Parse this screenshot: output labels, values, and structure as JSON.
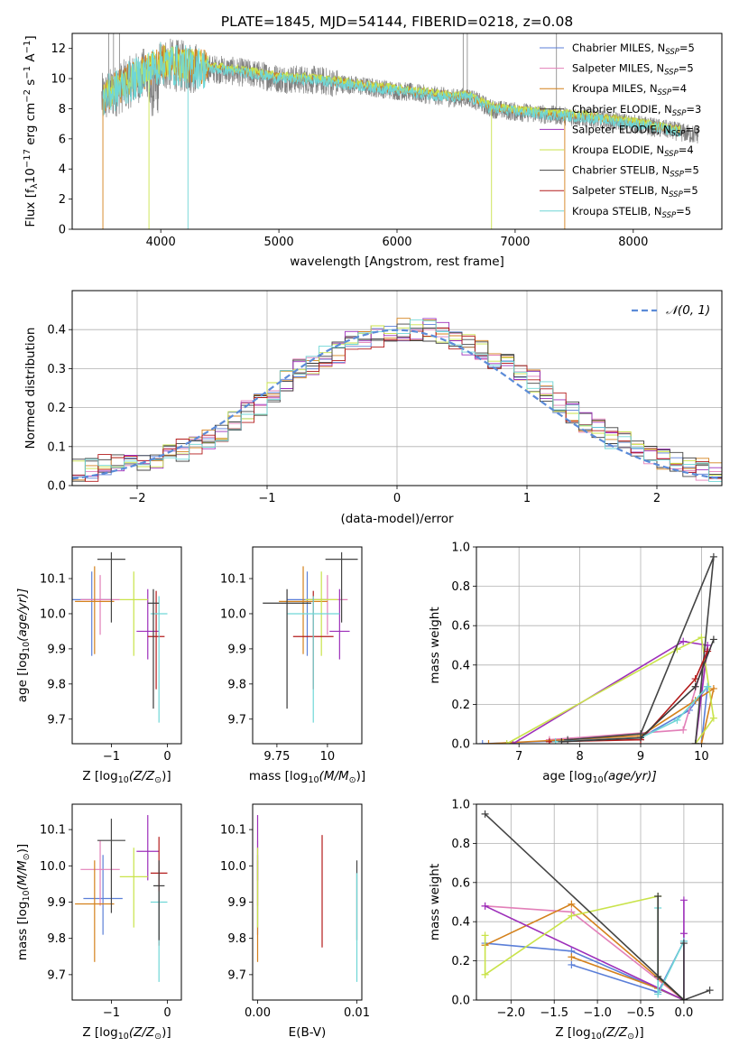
{
  "title": "PLATE=1845, MJD=54144, FIBERID=0218, z=0.08",
  "models": [
    {
      "label": "Chabrier MILES, N",
      "color": "#5b7fd8"
    },
    {
      "label": "Salpeter MILES, N",
      "color": "#e27fb8"
    },
    {
      "label": "Kroupa MILES, N",
      "color": "#d4811c"
    },
    {
      "label": "Chabrier ELODIE, N",
      "color": "#3a3a3a"
    },
    {
      "label": "Salpeter ELODIE, N",
      "color": "#9d2fba"
    },
    {
      "label": "Kroupa ELODIE, N",
      "color": "#c9e34a"
    },
    {
      "label": "Chabrier STELIB, N",
      "color": "#444444"
    },
    {
      "label": "Salpeter STELIB, N",
      "color": "#b31b1b"
    },
    {
      "label": "Kroupa STELIB, N",
      "color": "#6fd6d6"
    }
  ],
  "nssp_sub": "SSP",
  "nssp_values": [
    "=5",
    "=5",
    "=4",
    "=3",
    "=3",
    "=4",
    "=5",
    "=5",
    "=5"
  ],
  "colors": {
    "spectrum_gray": "#808080",
    "orange_models": "#e07a2d",
    "gaussian": "#5b8bd8",
    "green_dark": "#4a8a5a"
  },
  "chart_data": [
    {
      "id": "spectrum",
      "type": "line",
      "xlabel": "wavelength [Angstrom, rest frame]",
      "ylabel": "Flux [f_λ 10^-17 erg cm^-2 s^-1 A^-1]",
      "xlim": [
        3250,
        8750
      ],
      "ylim": [
        0,
        13
      ],
      "xticks": [
        4000,
        5000,
        6000,
        7000,
        8000
      ],
      "yticks": [
        0,
        2,
        4,
        6,
        8,
        10,
        12
      ],
      "continuum_x": [
        3500,
        3700,
        3900,
        4000,
        4200,
        4500,
        4800,
        5000,
        5300,
        5600,
        5900,
        6200,
        6500,
        6600,
        6800,
        7000,
        7300,
        7600,
        8000,
        8300,
        8500
      ],
      "continuum_y": [
        8.6,
        9.6,
        10.5,
        11.0,
        10.8,
        10.6,
        10.3,
        10.0,
        9.9,
        9.6,
        9.3,
        9.0,
        8.7,
        8.8,
        8.0,
        7.8,
        7.6,
        7.4,
        7.0,
        6.6,
        6.3
      ],
      "grid": false,
      "legend": "top-right"
    },
    {
      "id": "residuals",
      "type": "bar",
      "xlabel": "(data-model)/error",
      "ylabel": "Normed distribution",
      "xlim": [
        -2.5,
        2.5
      ],
      "ylim": [
        0,
        0.5
      ],
      "xticks": [
        -2,
        -1,
        0,
        1,
        2
      ],
      "yticks": [
        0.0,
        0.1,
        0.2,
        0.3,
        0.4
      ],
      "histogram_values": [
        0.04,
        0.04,
        0.05,
        0.06,
        0.07,
        0.06,
        0.07,
        0.08,
        0.09,
        0.1,
        0.12,
        0.13,
        0.16,
        0.19,
        0.21,
        0.24,
        0.27,
        0.3,
        0.31,
        0.33,
        0.34,
        0.37,
        0.37,
        0.38,
        0.39,
        0.4,
        0.4,
        0.4,
        0.39,
        0.38,
        0.36,
        0.35,
        0.33,
        0.31,
        0.3,
        0.27,
        0.24,
        0.21,
        0.19,
        0.16,
        0.15,
        0.12,
        0.11,
        0.09,
        0.08,
        0.07,
        0.06,
        0.05,
        0.04,
        0.03
      ],
      "legend_label": "N(0, 1)",
      "grid": true,
      "legend": "top-right"
    },
    {
      "id": "age-vs-Z",
      "type": "scatter",
      "xlabel": "Z [log10(Z/Z⊙)]",
      "ylabel": "age  [log10(age/yr)]",
      "xlim": [
        -1.7,
        0.25
      ],
      "ylim": [
        9.63,
        10.19
      ],
      "xticks": [
        -1,
        0
      ],
      "yticks": [
        9.7,
        9.8,
        9.9,
        10.0,
        10.1
      ],
      "points": [
        {
          "x": -1.35,
          "y": 10.04,
          "xerr": 0.35,
          "yerr": [
            0.16,
            0.08
          ],
          "model": 0
        },
        {
          "x": -1.2,
          "y": 10.04,
          "xerr": 0.35,
          "yerr": [
            0.1,
            0.07
          ],
          "model": 1
        },
        {
          "x": -1.3,
          "y": 10.035,
          "xerr": 0.35,
          "yerr": [
            0.15,
            0.1
          ],
          "model": 2
        },
        {
          "x": -0.35,
          "y": 9.95,
          "xerr": 0.2,
          "yerr": [
            0.08,
            0.12
          ],
          "model": 4
        },
        {
          "x": -0.6,
          "y": 10.04,
          "xerr": 0.25,
          "yerr": [
            0.16,
            0.08
          ],
          "model": 5
        },
        {
          "x": -1.0,
          "y": 10.155,
          "xerr": 0.25,
          "yerr": [
            0.18,
            0.02
          ],
          "model": 6
        },
        {
          "x": -0.2,
          "y": 9.935,
          "xerr": 0.15,
          "yerr": [
            0.15,
            0.13
          ],
          "model": 7
        },
        {
          "x": -0.15,
          "y": 10.0,
          "xerr": 0.15,
          "yerr": [
            0.31,
            0.05
          ],
          "model": 8
        },
        {
          "x": -0.25,
          "y": 10.03,
          "xerr": 0.1,
          "yerr": [
            0.3,
            0.04
          ],
          "model": 3
        }
      ]
    },
    {
      "id": "age-vs-mass",
      "type": "scatter",
      "xlabel": "mass [log10(M/M⊙)]",
      "ylabel": "",
      "xlim": [
        9.63,
        10.17
      ],
      "ylim": [
        9.63,
        10.19
      ],
      "xticks": [
        9.75,
        10.0
      ],
      "yticks": [
        9.7,
        9.8,
        9.9,
        10.0,
        10.1
      ],
      "points": [
        {
          "x": 9.9,
          "y": 10.04,
          "xerr": 0.1,
          "yerr": [
            0.16,
            0.08
          ],
          "model": 0
        },
        {
          "x": 10.0,
          "y": 10.04,
          "xerr": 0.1,
          "yerr": [
            0.1,
            0.07
          ],
          "model": 1
        },
        {
          "x": 9.88,
          "y": 10.035,
          "xerr": 0.12,
          "yerr": [
            0.15,
            0.1
          ],
          "model": 2
        },
        {
          "x": 10.06,
          "y": 9.95,
          "xerr": 0.05,
          "yerr": [
            0.08,
            0.12
          ],
          "model": 4
        },
        {
          "x": 9.97,
          "y": 10.04,
          "xerr": 0.08,
          "yerr": [
            0.16,
            0.08
          ],
          "model": 5
        },
        {
          "x": 10.07,
          "y": 10.155,
          "xerr": 0.08,
          "yerr": [
            0.18,
            0.02
          ],
          "model": 6
        },
        {
          "x": 9.93,
          "y": 9.935,
          "xerr": 0.1,
          "yerr": [
            0.15,
            0.13
          ],
          "model": 7
        },
        {
          "x": 9.93,
          "y": 10.0,
          "xerr": 0.13,
          "yerr": [
            0.31,
            0.05
          ],
          "model": 8
        },
        {
          "x": 9.8,
          "y": 10.03,
          "xerr": 0.12,
          "yerr": [
            0.3,
            0.04
          ],
          "model": 3
        }
      ]
    },
    {
      "id": "weight-vs-age",
      "type": "line",
      "xlabel": "age  [log10(age/yr)]",
      "ylabel": "mass weight",
      "xlim": [
        6.3,
        10.35
      ],
      "ylim": [
        0,
        1
      ],
      "xticks": [
        7,
        8,
        9,
        10
      ],
      "yticks": [
        0.0,
        0.2,
        0.4,
        0.6,
        0.8,
        1.0
      ],
      "series": [
        {
          "model": 0,
          "x": [
            6.4,
            9.0,
            9.8,
            10.1,
            10.0
          ],
          "y": [
            0.0,
            0.03,
            0.17,
            0.29,
            0.0
          ]
        },
        {
          "model": 1,
          "x": [
            7.5,
            9.7,
            10.1,
            9.9
          ],
          "y": [
            0.02,
            0.07,
            0.48,
            0.0
          ]
        },
        {
          "model": 2,
          "x": [
            6.5,
            9.0,
            9.9,
            10.2,
            10.0
          ],
          "y": [
            0.0,
            0.04,
            0.22,
            0.28,
            0.0
          ]
        },
        {
          "model": 4,
          "x": [
            6.9,
            9.7,
            10.1,
            9.9
          ],
          "y": [
            0.0,
            0.52,
            0.5,
            0.0
          ]
        },
        {
          "model": 5,
          "x": [
            6.8,
            9.6,
            10.0,
            10.2,
            9.9
          ],
          "y": [
            0.0,
            0.48,
            0.54,
            0.13,
            0.0
          ]
        },
        {
          "model": 6,
          "x": [
            7.8,
            9.0,
            10.2,
            9.9
          ],
          "y": [
            0.02,
            0.05,
            0.95,
            0.0
          ]
        },
        {
          "model": 7,
          "x": [
            7.5,
            9.0,
            9.9,
            10.1
          ],
          "y": [
            0.01,
            0.02,
            0.33,
            0.47
          ]
        },
        {
          "model": 8,
          "x": [
            7.6,
            9.0,
            9.6,
            10.1
          ],
          "y": [
            0.01,
            0.03,
            0.12,
            0.29
          ]
        },
        {
          "model": 3,
          "x": [
            7.7,
            9.0,
            9.9,
            10.2
          ],
          "y": [
            0.01,
            0.03,
            0.29,
            0.53
          ]
        }
      ]
    },
    {
      "id": "mass-vs-Z",
      "type": "scatter",
      "xlabel": "Z [log10(Z/Z⊙)]",
      "ylabel": "mass [log10(M/M⊙)]",
      "xlim": [
        -1.7,
        0.25
      ],
      "ylim": [
        9.63,
        10.17
      ],
      "xticks": [
        -1,
        0
      ],
      "yticks": [
        9.7,
        9.8,
        9.9,
        10.0,
        10.1
      ],
      "points": [
        {
          "x": -1.15,
          "y": 9.91,
          "xerr": 0.35,
          "yerr": [
            0.1,
            0.12
          ],
          "model": 0
        },
        {
          "x": -1.2,
          "y": 9.99,
          "xerr": 0.35,
          "yerr": [
            0.1,
            0.08
          ],
          "model": 1
        },
        {
          "x": -1.3,
          "y": 9.895,
          "xerr": 0.35,
          "yerr": [
            0.16,
            0.12
          ],
          "model": 2
        },
        {
          "x": -0.35,
          "y": 10.04,
          "xerr": 0.2,
          "yerr": [
            0.08,
            0.1
          ],
          "model": 4
        },
        {
          "x": -0.6,
          "y": 9.97,
          "xerr": 0.25,
          "yerr": [
            0.14,
            0.08
          ],
          "model": 5
        },
        {
          "x": -1.0,
          "y": 10.07,
          "xerr": 0.25,
          "yerr": [
            0.2,
            0.06
          ],
          "model": 6
        },
        {
          "x": -0.15,
          "y": 9.98,
          "xerr": 0.15,
          "yerr": [
            0.2,
            0.1
          ],
          "model": 7
        },
        {
          "x": -0.15,
          "y": 9.9,
          "xerr": 0.15,
          "yerr": [
            0.22,
            0.03
          ],
          "model": 8
        },
        {
          "x": -0.15,
          "y": 9.945,
          "xerr": 0.1,
          "yerr": [
            0.15,
            0.07
          ],
          "model": 3
        }
      ]
    },
    {
      "id": "mass-vs-EBV",
      "type": "scatter",
      "xlabel": "E(B-V)",
      "ylabel": "",
      "xlim": [
        -0.0005,
        0.0105
      ],
      "ylim": [
        9.63,
        10.17
      ],
      "xticks": [
        0.0,
        0.01
      ],
      "xticklabels": [
        "0.00",
        "0.01"
      ],
      "yticks": [
        9.7,
        9.8,
        9.9,
        10.0,
        10.1
      ],
      "points": [
        {
          "x": 0.0,
          "y": 9.91,
          "yerr": [
            0.1,
            0.12
          ],
          "model": 0
        },
        {
          "x": 0.0,
          "y": 9.99,
          "yerr": [
            0.1,
            0.08
          ],
          "model": 1
        },
        {
          "x": 0.0,
          "y": 9.895,
          "yerr": [
            0.16,
            0.12
          ],
          "model": 2
        },
        {
          "x": 0.0,
          "y": 10.04,
          "yerr": [
            0.08,
            0.1
          ],
          "model": 4
        },
        {
          "x": 0.0,
          "y": 9.97,
          "yerr": [
            0.14,
            0.08
          ],
          "model": 5
        },
        {
          "x": 0.01,
          "y": 9.945,
          "yerr": [
            0.15,
            0.07
          ],
          "model": 6
        },
        {
          "x": 0.0065,
          "y": 9.945,
          "yerr": [
            0.17,
            0.14
          ],
          "model": 7
        },
        {
          "x": 0.01,
          "y": 9.9,
          "yerr": [
            0.22,
            0.08
          ],
          "model": 8
        }
      ]
    },
    {
      "id": "weight-vs-Z",
      "type": "line",
      "xlabel": "Z [log10(Z/Z⊙)]",
      "ylabel": "mass weight",
      "xlim": [
        -2.4,
        0.45
      ],
      "ylim": [
        0,
        1
      ],
      "xticks": [
        -2.0,
        -1.5,
        -1.0,
        -0.5,
        0.0
      ],
      "xticklabels": [
        "−2.0",
        "−1.5",
        "−1.0",
        "−0.5",
        "0.0"
      ],
      "yticks": [
        0.0,
        0.2,
        0.4,
        0.6,
        0.8,
        1.0
      ],
      "series": [
        {
          "model": 0,
          "x": [
            -2.3,
            -1.3,
            0.0
          ],
          "y": [
            0.29,
            0.25,
            0.0
          ]
        },
        {
          "model": 0,
          "x": [
            -1.3,
            -0.3,
            0.0
          ],
          "y": [
            0.18,
            0.04,
            0.3
          ]
        },
        {
          "model": 1,
          "x": [
            -2.3,
            -1.3,
            0.0
          ],
          "y": [
            0.48,
            0.45,
            0.0
          ]
        },
        {
          "model": 2,
          "x": [
            -2.3,
            -1.3,
            0.0
          ],
          "y": [
            0.28,
            0.49,
            0.0
          ]
        },
        {
          "model": 2,
          "x": [
            -1.3,
            -0.3,
            0.0
          ],
          "y": [
            0.22,
            0.06,
            0.0
          ]
        },
        {
          "model": 4,
          "x": [
            -2.3,
            0.0,
            0.0,
            0.0
          ],
          "y": [
            0.48,
            0.0,
            0.51,
            0.34
          ]
        },
        {
          "model": 5,
          "x": [
            -2.3,
            -1.3,
            -0.3,
            -0.3,
            0.0
          ],
          "y": [
            0.13,
            0.43,
            0.53,
            0.12,
            0.0
          ]
        },
        {
          "model": 5,
          "x": [
            -2.3,
            -2.3
          ],
          "y": [
            0.33,
            0.13
          ]
        },
        {
          "model": 6,
          "x": [
            -2.3,
            0.0,
            0.3
          ],
          "y": [
            0.95,
            0.0,
            0.05
          ]
        },
        {
          "model": 8,
          "x": [
            -0.3,
            -0.3,
            0.0
          ],
          "y": [
            0.47,
            0.03,
            0.3
          ]
        },
        {
          "model": 3,
          "x": [
            -0.3,
            -0.3,
            0.0,
            0.0
          ],
          "y": [
            0.53,
            0.12,
            0.0,
            0.29
          ]
        }
      ]
    }
  ],
  "axes_text": {
    "spectrum_ylabel_pre": "Flux [f",
    "spectrum_ylabel_mid": "10",
    "spectrum_ylabel_exp": "−17",
    "spectrum_ylabel_units": " erg cm",
    "spectrum_ylabel_cm_exp": "−2",
    "spectrum_ylabel_s": " s",
    "spectrum_ylabel_s_exp": "−1",
    "spectrum_ylabel_A": " A",
    "spectrum_ylabel_A_exp": "−1",
    "spectrum_ylabel_end": "]",
    "Z_label_pre": "Z [log",
    "Z_label_sub": "10",
    "Z_label_post": "(Z/Z",
    "Z_label_sun": "⊙",
    "Z_label_end": ")]",
    "age_label_pre": "age  [log",
    "age_label_sub": "10",
    "age_label_post": "(age/yr)]",
    "mass_label_pre": "mass [log",
    "mass_label_sub": "10",
    "mass_label_post": "(M/M",
    "mass_label_sun": "⊙",
    "mass_label_end": ")]",
    "mass_weight": "mass weight",
    "ebv": "E(B-V)",
    "gauss_legend": "𝒩(0, 1)",
    "hist_xlabel": "(data-model)/error",
    "hist_ylabel": "Normed distribution",
    "spec_xlabel": "wavelength [Angstrom, rest frame]"
  }
}
